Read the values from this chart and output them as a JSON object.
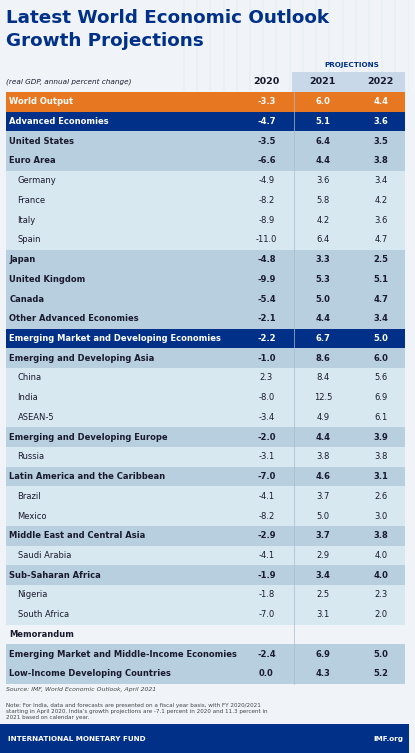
{
  "title_line1": "Latest World Economic Outlook",
  "title_line2": "Growth Projections",
  "subtitle": "PROJECTIONS",
  "col_header_label": "(real GDP, annual percent change)",
  "col_headers": [
    "2020",
    "2021",
    "2022"
  ],
  "rows": [
    {
      "label": "World Output",
      "indent": 0,
      "type": "world",
      "v2020": "-3.3",
      "v2021": "6.0",
      "v2022": "4.4"
    },
    {
      "label": "Advanced Economies",
      "indent": 0,
      "type": "header1",
      "v2020": "-4.7",
      "v2021": "5.1",
      "v2022": "3.6"
    },
    {
      "label": "United States",
      "indent": 0,
      "type": "subheader",
      "v2020": "-3.5",
      "v2021": "6.4",
      "v2022": "3.5"
    },
    {
      "label": "Euro Area",
      "indent": 0,
      "type": "subheader",
      "v2020": "-6.6",
      "v2021": "4.4",
      "v2022": "3.8"
    },
    {
      "label": "Germany",
      "indent": 1,
      "type": "indent1",
      "v2020": "-4.9",
      "v2021": "3.6",
      "v2022": "3.4"
    },
    {
      "label": "France",
      "indent": 1,
      "type": "indent1",
      "v2020": "-8.2",
      "v2021": "5.8",
      "v2022": "4.2"
    },
    {
      "label": "Italy",
      "indent": 1,
      "type": "indent1",
      "v2020": "-8.9",
      "v2021": "4.2",
      "v2022": "3.6"
    },
    {
      "label": "Spain",
      "indent": 1,
      "type": "indent1",
      "v2020": "-11.0",
      "v2021": "6.4",
      "v2022": "4.7"
    },
    {
      "label": "Japan",
      "indent": 0,
      "type": "subheader",
      "v2020": "-4.8",
      "v2021": "3.3",
      "v2022": "2.5"
    },
    {
      "label": "United Kingdom",
      "indent": 0,
      "type": "subheader",
      "v2020": "-9.9",
      "v2021": "5.3",
      "v2022": "5.1"
    },
    {
      "label": "Canada",
      "indent": 0,
      "type": "subheader",
      "v2020": "-5.4",
      "v2021": "5.0",
      "v2022": "4.7"
    },
    {
      "label": "Other Advanced Economies",
      "indent": 0,
      "type": "subheader",
      "v2020": "-2.1",
      "v2021": "4.4",
      "v2022": "3.4"
    },
    {
      "label": "Emerging Market and Developing Economies",
      "indent": 0,
      "type": "header1",
      "v2020": "-2.2",
      "v2021": "6.7",
      "v2022": "5.0"
    },
    {
      "label": "Emerging and Developing Asia",
      "indent": 0,
      "type": "subheader",
      "v2020": "-1.0",
      "v2021": "8.6",
      "v2022": "6.0"
    },
    {
      "label": "China",
      "indent": 1,
      "type": "indent1",
      "v2020": "2.3",
      "v2021": "8.4",
      "v2022": "5.6"
    },
    {
      "label": "India",
      "indent": 1,
      "type": "indent1",
      "v2020": "-8.0",
      "v2021": "12.5",
      "v2022": "6.9"
    },
    {
      "label": "ASEAN-5",
      "indent": 1,
      "type": "indent1",
      "v2020": "-3.4",
      "v2021": "4.9",
      "v2022": "6.1"
    },
    {
      "label": "Emerging and Developing Europe",
      "indent": 0,
      "type": "subheader",
      "v2020": "-2.0",
      "v2021": "4.4",
      "v2022": "3.9"
    },
    {
      "label": "Russia",
      "indent": 1,
      "type": "indent1",
      "v2020": "-3.1",
      "v2021": "3.8",
      "v2022": "3.8"
    },
    {
      "label": "Latin America and the Caribbean",
      "indent": 0,
      "type": "subheader",
      "v2020": "-7.0",
      "v2021": "4.6",
      "v2022": "3.1"
    },
    {
      "label": "Brazil",
      "indent": 1,
      "type": "indent1",
      "v2020": "-4.1",
      "v2021": "3.7",
      "v2022": "2.6"
    },
    {
      "label": "Mexico",
      "indent": 1,
      "type": "indent1",
      "v2020": "-8.2",
      "v2021": "5.0",
      "v2022": "3.0"
    },
    {
      "label": "Middle East and Central Asia",
      "indent": 0,
      "type": "subheader",
      "v2020": "-2.9",
      "v2021": "3.7",
      "v2022": "3.8"
    },
    {
      "label": "Saudi Arabia",
      "indent": 1,
      "type": "indent1",
      "v2020": "-4.1",
      "v2021": "2.9",
      "v2022": "4.0"
    },
    {
      "label": "Sub-Saharan Africa",
      "indent": 0,
      "type": "subheader",
      "v2020": "-1.9",
      "v2021": "3.4",
      "v2022": "4.0"
    },
    {
      "label": "Nigeria",
      "indent": 1,
      "type": "indent1",
      "v2020": "-1.8",
      "v2021": "2.5",
      "v2022": "2.3"
    },
    {
      "label": "South Africa",
      "indent": 1,
      "type": "indent1",
      "v2020": "-7.0",
      "v2021": "3.1",
      "v2022": "2.0"
    },
    {
      "label": "Memorandum",
      "indent": 0,
      "type": "memo_header",
      "v2020": "",
      "v2021": "",
      "v2022": ""
    },
    {
      "label": "Emerging Market and Middle-Income Economies",
      "indent": 0,
      "type": "subheader",
      "v2020": "-2.4",
      "v2021": "6.9",
      "v2022": "5.0"
    },
    {
      "label": "Low-Income Developing Countries",
      "indent": 0,
      "type": "subheader",
      "v2020": "0.0",
      "v2021": "4.3",
      "v2022": "5.2"
    }
  ],
  "source_text": "Source: IMF, World Economic Outlook, April 2021",
  "note_text": "Note: For India, data and forecasts are presented on a fiscal year basis, with FY 2020/2021\nstarting in April 2020. India’s growth projections are -7.1 percent in 2020 and 11.3 percent in\n2021 based on calendar year.",
  "footer_left": "INTERNATIONAL MONETARY FUND",
  "footer_right": "IMF.org",
  "bg_color": "#f0f4f8",
  "title_color": "#003087",
  "world_row_color": "#e87722",
  "header1_color": "#003087",
  "subheader_color": "#b8cfe0",
  "indent1_color": "#d8e8f0",
  "memo_header_color": "#ffffff",
  "world_text_color": "#ffffff",
  "header1_text_color": "#ffffff",
  "dark_text_color": "#1a1a2e",
  "normal_text_color": "#1a1a2e",
  "projections_bg": "#c8d8e8"
}
